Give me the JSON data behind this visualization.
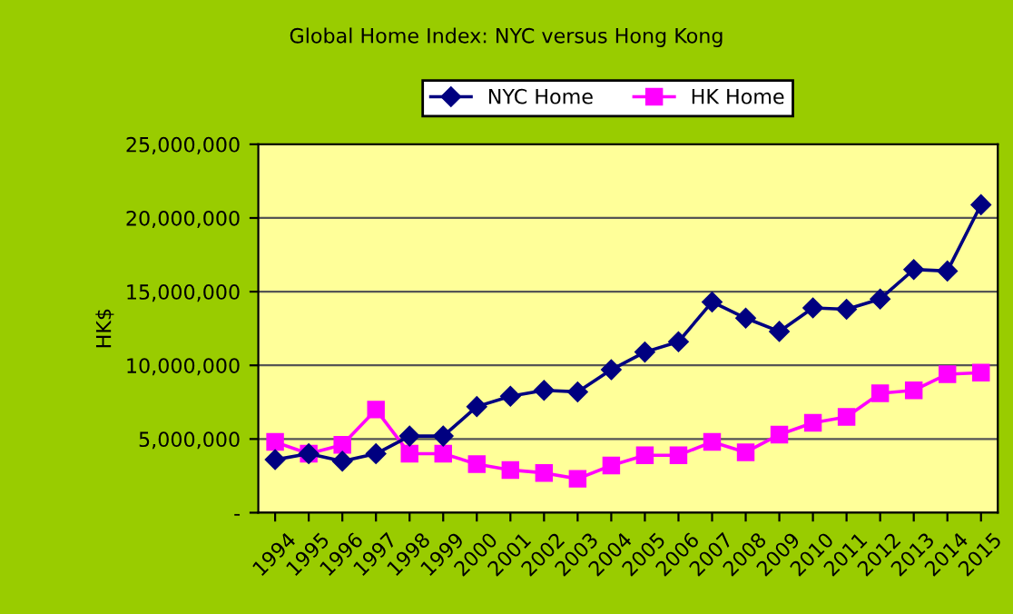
{
  "chart_data": {
    "type": "line",
    "title": "Global Home Index: NYC versus Hong Kong",
    "ylabel": "HK$",
    "categories": [
      "1994",
      "1995",
      "1996",
      "1997",
      "1998",
      "1999",
      "2000",
      "2001",
      "2002",
      "2003",
      "2004",
      "2005",
      "2006",
      "2007",
      "2008",
      "2009",
      "2010",
      "2011",
      "2012",
      "2013",
      "2014",
      "2015"
    ],
    "series": [
      {
        "name": "NYC Home",
        "color": "#000080",
        "marker": "diamond",
        "values": [
          3600000,
          4000000,
          3500000,
          4000000,
          5200000,
          5200000,
          7200000,
          7900000,
          8300000,
          8200000,
          9700000,
          10900000,
          11600000,
          14300000,
          13200000,
          12300000,
          13900000,
          13800000,
          14500000,
          16500000,
          16400000,
          20900000
        ]
      },
      {
        "name": "HK Home",
        "color": "#ff00ff",
        "marker": "square",
        "values": [
          4800000,
          4000000,
          4600000,
          7000000,
          4000000,
          4000000,
          3300000,
          2900000,
          2700000,
          2300000,
          3200000,
          3900000,
          3900000,
          4800000,
          4100000,
          5300000,
          6100000,
          6500000,
          8100000,
          8300000,
          9400000,
          9500000
        ]
      }
    ],
    "ylim": [
      0,
      25000000
    ],
    "yticks": [
      {
        "value": 0,
        "label": "-"
      },
      {
        "value": 5000000,
        "label": "5,000,000"
      },
      {
        "value": 10000000,
        "label": "10,000,000"
      },
      {
        "value": 15000000,
        "label": "15,000,000"
      },
      {
        "value": 20000000,
        "label": "20,000,000"
      },
      {
        "value": 25000000,
        "label": "25,000,000"
      }
    ],
    "grid": "y",
    "legend": "top",
    "line_style": "solid"
  }
}
